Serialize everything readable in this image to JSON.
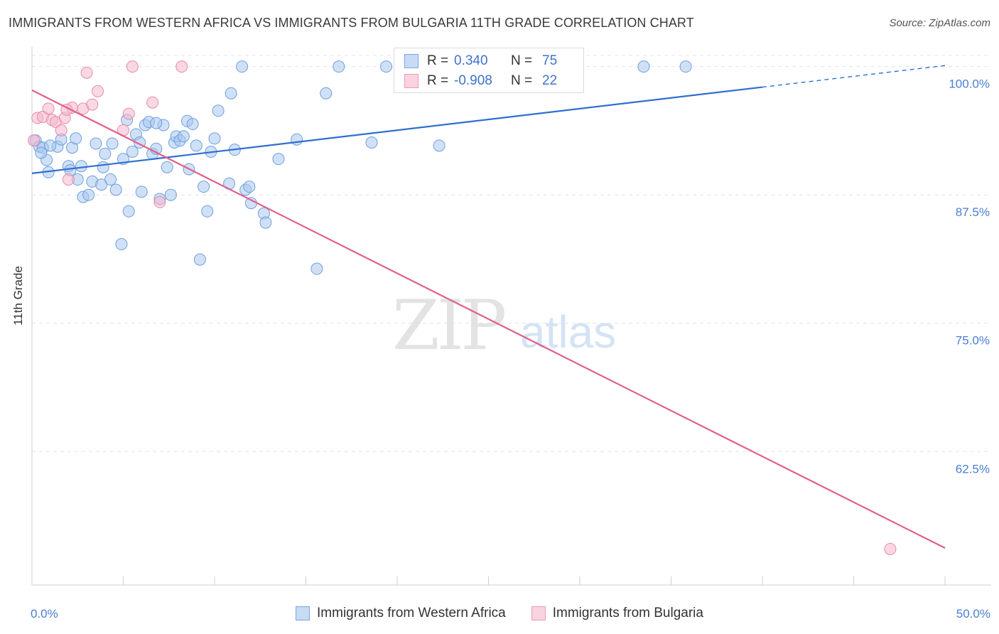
{
  "title": "IMMIGRANTS FROM WESTERN AFRICA VS IMMIGRANTS FROM BULGARIA 11TH GRADE CORRELATION CHART",
  "source": "Source: ZipAtlas.com",
  "watermark": {
    "zip": "ZIP",
    "atlas": "atlas"
  },
  "legend": {
    "rows": [
      {
        "r_label": "R =",
        "r_value": "0.340",
        "n_label": "N =",
        "n_value": "75",
        "color": "#a9c8f0"
      },
      {
        "r_label": "R =",
        "r_value": "-0.908",
        "n_label": "N =",
        "n_value": "22",
        "color": "#f5b8cc"
      }
    ]
  },
  "bottom_legend": {
    "western_africa": "Immigrants from Western Africa",
    "bulgaria": "Immigrants from Bulgaria"
  },
  "chart_data": {
    "type": "scatter",
    "title": "IMMIGRANTS FROM WESTERN AFRICA VS IMMIGRANTS FROM BULGARIA 11TH GRADE CORRELATION CHART",
    "xlabel": "",
    "ylabel": "11th Grade",
    "xlim": [
      0,
      50
    ],
    "ylim": [
      49.5,
      101.5
    ],
    "x_tick_labels": [
      {
        "value": 0,
        "label": "0.0%"
      },
      {
        "value": 50,
        "label": "50.0%"
      }
    ],
    "y_tick_labels": [
      {
        "value": 100,
        "label": "100.0%"
      },
      {
        "value": 87.5,
        "label": "87.5%"
      },
      {
        "value": 75,
        "label": "75.0%"
      },
      {
        "value": 62.5,
        "label": "62.5%"
      }
    ],
    "series": [
      {
        "name": "Immigrants from Western Africa",
        "color": "#a9c8f0",
        "stroke": "#6f9fdd",
        "trend_color": "#2f6fd0",
        "trend": {
          "x0": 0,
          "y0": 89.6,
          "x1": 40,
          "y1": 98.0,
          "dash_to_x": 50,
          "dash_to_y": 100.1
        },
        "points": [
          [
            0.2,
            92.8
          ],
          [
            0.4,
            92.2
          ],
          [
            0.6,
            92.1
          ],
          [
            0.8,
            90.9
          ],
          [
            0.9,
            89.7
          ],
          [
            1.4,
            92.2
          ],
          [
            1.6,
            92.9
          ],
          [
            2.0,
            90.3
          ],
          [
            2.1,
            89.9
          ],
          [
            2.2,
            92.1
          ],
          [
            2.5,
            89.0
          ],
          [
            2.7,
            90.3
          ],
          [
            2.8,
            87.3
          ],
          [
            3.1,
            87.5
          ],
          [
            3.3,
            88.8
          ],
          [
            3.5,
            92.5
          ],
          [
            3.8,
            88.5
          ],
          [
            3.9,
            90.2
          ],
          [
            4.0,
            91.5
          ],
          [
            4.3,
            89.0
          ],
          [
            4.4,
            92.5
          ],
          [
            4.6,
            88.0
          ],
          [
            4.9,
            82.7
          ],
          [
            5.0,
            91.0
          ],
          [
            5.2,
            94.8
          ],
          [
            5.3,
            85.9
          ],
          [
            5.5,
            91.7
          ],
          [
            5.7,
            93.4
          ],
          [
            5.9,
            92.6
          ],
          [
            6.0,
            87.8
          ],
          [
            6.2,
            94.3
          ],
          [
            6.4,
            94.6
          ],
          [
            6.6,
            91.5
          ],
          [
            6.8,
            92.0
          ],
          [
            7.0,
            87.1
          ],
          [
            7.2,
            94.3
          ],
          [
            7.4,
            90.2
          ],
          [
            7.6,
            87.5
          ],
          [
            7.8,
            92.6
          ],
          [
            7.9,
            93.2
          ],
          [
            8.1,
            92.8
          ],
          [
            8.3,
            93.2
          ],
          [
            8.5,
            94.7
          ],
          [
            8.6,
            90.0
          ],
          [
            8.8,
            94.4
          ],
          [
            9.0,
            92.3
          ],
          [
            9.2,
            81.2
          ],
          [
            9.4,
            88.3
          ],
          [
            9.6,
            85.9
          ],
          [
            9.8,
            91.7
          ],
          [
            10.0,
            93.0
          ],
          [
            10.2,
            95.7
          ],
          [
            10.8,
            88.6
          ],
          [
            10.9,
            97.4
          ],
          [
            11.1,
            91.9
          ],
          [
            11.5,
            100.0
          ],
          [
            11.7,
            88.0
          ],
          [
            11.9,
            88.3
          ],
          [
            12.0,
            86.7
          ],
          [
            12.7,
            85.7
          ],
          [
            12.8,
            84.8
          ],
          [
            13.5,
            91.0
          ],
          [
            14.5,
            92.9
          ],
          [
            15.6,
            80.3
          ],
          [
            16.1,
            97.4
          ],
          [
            16.8,
            100.0
          ],
          [
            18.6,
            92.6
          ],
          [
            19.4,
            100.0
          ],
          [
            22.3,
            92.3
          ],
          [
            33.5,
            100.0
          ],
          [
            35.8,
            100.0
          ],
          [
            1.0,
            92.3
          ],
          [
            2.4,
            93.0
          ],
          [
            6.8,
            94.5
          ],
          [
            0.5,
            91.6
          ]
        ]
      },
      {
        "name": "Immigrants from Bulgaria",
        "color": "#f5b8cc",
        "stroke": "#e88aaa",
        "trend_color": "#e0608a",
        "trend": {
          "x0": 0,
          "y0": 97.7,
          "x1": 50,
          "y1": 53.1
        },
        "points": [
          [
            0.3,
            95.0
          ],
          [
            0.6,
            95.1
          ],
          [
            0.9,
            95.9
          ],
          [
            1.1,
            94.8
          ],
          [
            1.3,
            94.6
          ],
          [
            1.6,
            93.8
          ],
          [
            1.8,
            95.0
          ],
          [
            2.0,
            89.0
          ],
          [
            2.2,
            96.0
          ],
          [
            2.8,
            95.9
          ],
          [
            3.0,
            99.4
          ],
          [
            3.3,
            96.3
          ],
          [
            3.6,
            97.6
          ],
          [
            5.0,
            93.8
          ],
          [
            5.3,
            95.4
          ],
          [
            5.5,
            100.0
          ],
          [
            6.6,
            96.5
          ],
          [
            7.0,
            86.8
          ],
          [
            8.2,
            100.0
          ],
          [
            47.0,
            53.0
          ],
          [
            0.1,
            92.8
          ],
          [
            1.9,
            95.8
          ]
        ]
      }
    ]
  }
}
